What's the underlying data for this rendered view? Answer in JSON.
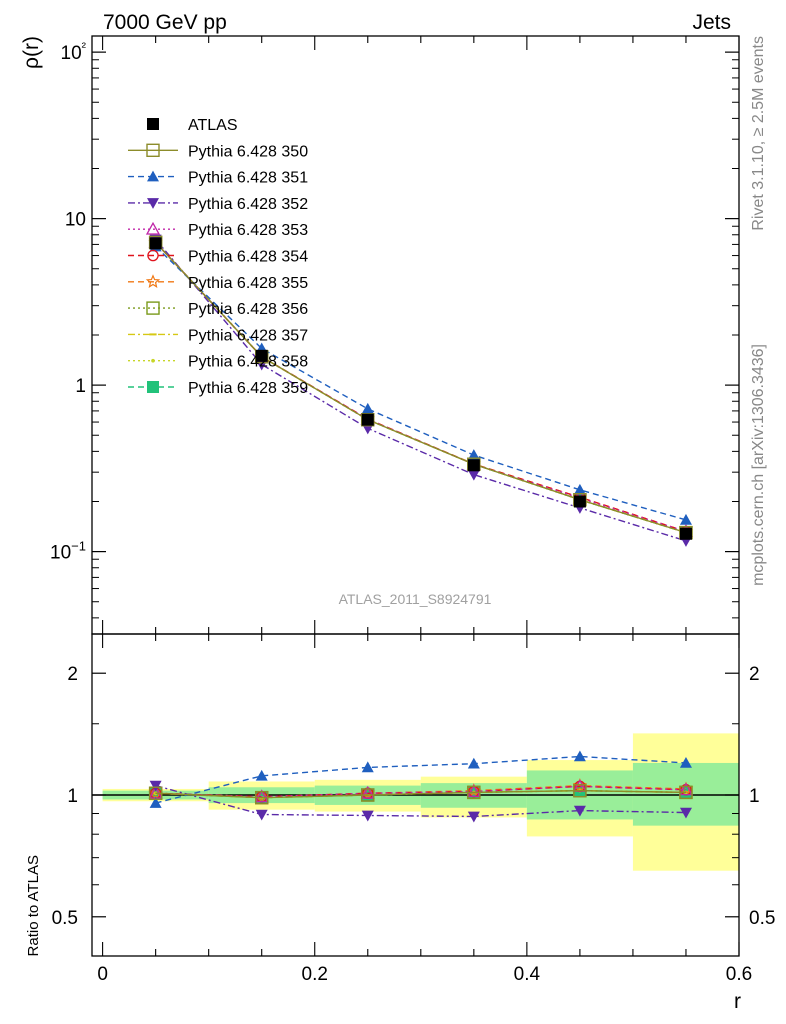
{
  "header": {
    "left": "7000 GeV pp",
    "right": "Jets"
  },
  "side_text": {
    "rivet": "Rivet 3.1.10, ≥ 2.5M events",
    "mcplots": "mcplots.cern.ch [arXiv:1306.3436]"
  },
  "watermark": "ATLAS_2011_S8924791",
  "chart_data": [
    {
      "type": "line",
      "ylabel": "ρ(r)",
      "xlabel": "r",
      "yscale": "log",
      "xlim": [
        -0.01,
        0.6
      ],
      "ylim": [
        0.032,
        125
      ],
      "x_ticks": [
        "0",
        "0.2",
        "0.4",
        "0.6"
      ],
      "y_tick_labels": [
        "10−1",
        "1",
        "10",
        "10²"
      ],
      "x": [
        0.05,
        0.15,
        0.25,
        0.35,
        0.45,
        0.55
      ],
      "legend": [
        {
          "name": "ATLAS",
          "color": "#000000",
          "marker": "square-filled",
          "dash": "none"
        },
        {
          "name": "Pythia 6.428 350",
          "color": "#8c8c2a",
          "marker": "square-open",
          "dash": "solid"
        },
        {
          "name": "Pythia 6.428 351",
          "color": "#1f5fbf",
          "marker": "triangle-up",
          "dash": "dashed"
        },
        {
          "name": "Pythia 6.428 352",
          "color": "#5a2aa8",
          "marker": "triangle-down",
          "dash": "dashdot"
        },
        {
          "name": "Pythia 6.428 353",
          "color": "#c026a8",
          "marker": "triangle-open",
          "dash": "dotted"
        },
        {
          "name": "Pythia 6.428 354",
          "color": "#e0141e",
          "marker": "circle-open",
          "dash": "dashed"
        },
        {
          "name": "Pythia 6.428 355",
          "color": "#f07814",
          "marker": "star-open",
          "dash": "dashed"
        },
        {
          "name": "Pythia 6.428 356",
          "color": "#7a9a1a",
          "marker": "square-open",
          "dash": "dotted"
        },
        {
          "name": "Pythia 6.428 357",
          "color": "#d6c814",
          "marker": "dash",
          "dash": "dashdot"
        },
        {
          "name": "Pythia 6.428 358",
          "color": "#c8d628",
          "marker": "dot",
          "dash": "dotted"
        },
        {
          "name": "Pythia 6.428 359",
          "color": "#22c27a",
          "marker": "square-filled",
          "dash": "dashed"
        }
      ],
      "series": [
        {
          "name": "ATLAS",
          "values": [
            7.1,
            1.5,
            0.62,
            0.33,
            0.2,
            0.128
          ]
        },
        {
          "name": "Pythia 6.428 350",
          "values": [
            7.2,
            1.48,
            0.62,
            0.335,
            0.205,
            0.13
          ]
        },
        {
          "name": "Pythia 6.428 351",
          "values": [
            6.8,
            1.66,
            0.72,
            0.38,
            0.235,
            0.155
          ]
        },
        {
          "name": "Pythia 6.428 352",
          "values": [
            7.5,
            1.33,
            0.55,
            0.29,
            0.183,
            0.116
          ]
        },
        {
          "name": "Pythia 6.428 353",
          "values": [
            7.2,
            1.48,
            0.625,
            0.335,
            0.21,
            0.132
          ]
        },
        {
          "name": "Pythia 6.428 354",
          "values": [
            7.2,
            1.48,
            0.625,
            0.335,
            0.212,
            0.132
          ]
        },
        {
          "name": "Pythia 6.428 355",
          "values": [
            7.2,
            1.48,
            0.625,
            0.336,
            0.212,
            0.132
          ]
        },
        {
          "name": "Pythia 6.428 356",
          "values": [
            7.2,
            1.48,
            0.62,
            0.335,
            0.205,
            0.13
          ]
        },
        {
          "name": "Pythia 6.428 357",
          "values": [
            7.2,
            1.48,
            0.62,
            0.335,
            0.205,
            0.13
          ]
        },
        {
          "name": "Pythia 6.428 358",
          "values": [
            7.2,
            1.48,
            0.62,
            0.335,
            0.205,
            0.13
          ]
        },
        {
          "name": "Pythia 6.428 359",
          "values": [
            7.2,
            1.48,
            0.62,
            0.335,
            0.205,
            0.13
          ]
        }
      ]
    },
    {
      "type": "line",
      "ylabel": "Ratio to ATLAS",
      "xlabel": "r",
      "yscale": "log",
      "xlim": [
        -0.01,
        0.6
      ],
      "ylim": [
        0.4,
        2.5
      ],
      "y_tick_labels": [
        "0.5",
        "1",
        "2"
      ],
      "x": [
        0.05,
        0.15,
        0.25,
        0.35,
        0.45,
        0.55
      ],
      "bands": {
        "x_edges": [
          0.0,
          0.1,
          0.2,
          0.3,
          0.4,
          0.5,
          0.6
        ],
        "yellow": [
          [
            0.965,
            1.035
          ],
          [
            0.92,
            1.08
          ],
          [
            0.91,
            1.09
          ],
          [
            0.88,
            1.11
          ],
          [
            0.79,
            1.22
          ],
          [
            0.65,
            1.42
          ]
        ],
        "green": [
          [
            0.975,
            1.025
          ],
          [
            0.955,
            1.045
          ],
          [
            0.945,
            1.055
          ],
          [
            0.93,
            1.07
          ],
          [
            0.87,
            1.15
          ],
          [
            0.84,
            1.2
          ]
        ]
      },
      "series": [
        {
          "name": "ATLAS",
          "values": [
            1,
            1,
            1,
            1,
            1,
            1
          ]
        },
        {
          "name": "Pythia 6.428 350",
          "values": [
            1.01,
            0.985,
            1.0,
            1.015,
            1.025,
            1.015
          ]
        },
        {
          "name": "Pythia 6.428 351",
          "values": [
            0.955,
            1.115,
            1.17,
            1.195,
            1.245,
            1.2
          ]
        },
        {
          "name": "Pythia 6.428 352",
          "values": [
            1.055,
            0.895,
            0.89,
            0.885,
            0.915,
            0.905
          ]
        },
        {
          "name": "Pythia 6.428 353",
          "values": [
            1.01,
            0.99,
            1.01,
            1.02,
            1.05,
            1.03
          ]
        },
        {
          "name": "Pythia 6.428 354",
          "values": [
            1.01,
            0.99,
            1.01,
            1.02,
            1.05,
            1.03
          ]
        },
        {
          "name": "Pythia 6.428 355",
          "values": [
            1.01,
            0.99,
            1.01,
            1.025,
            1.055,
            1.035
          ]
        },
        {
          "name": "Pythia 6.428 356",
          "values": [
            1.01,
            0.985,
            1.0,
            1.015,
            1.025,
            1.015
          ]
        },
        {
          "name": "Pythia 6.428 357",
          "values": [
            1.01,
            0.985,
            1.0,
            1.015,
            1.025,
            1.015
          ]
        },
        {
          "name": "Pythia 6.428 358",
          "values": [
            1.01,
            0.985,
            1.0,
            1.015,
            1.025,
            1.015
          ]
        },
        {
          "name": "Pythia 6.428 359",
          "values": [
            1.01,
            0.985,
            1.0,
            1.015,
            1.025,
            1.015
          ]
        }
      ]
    }
  ]
}
